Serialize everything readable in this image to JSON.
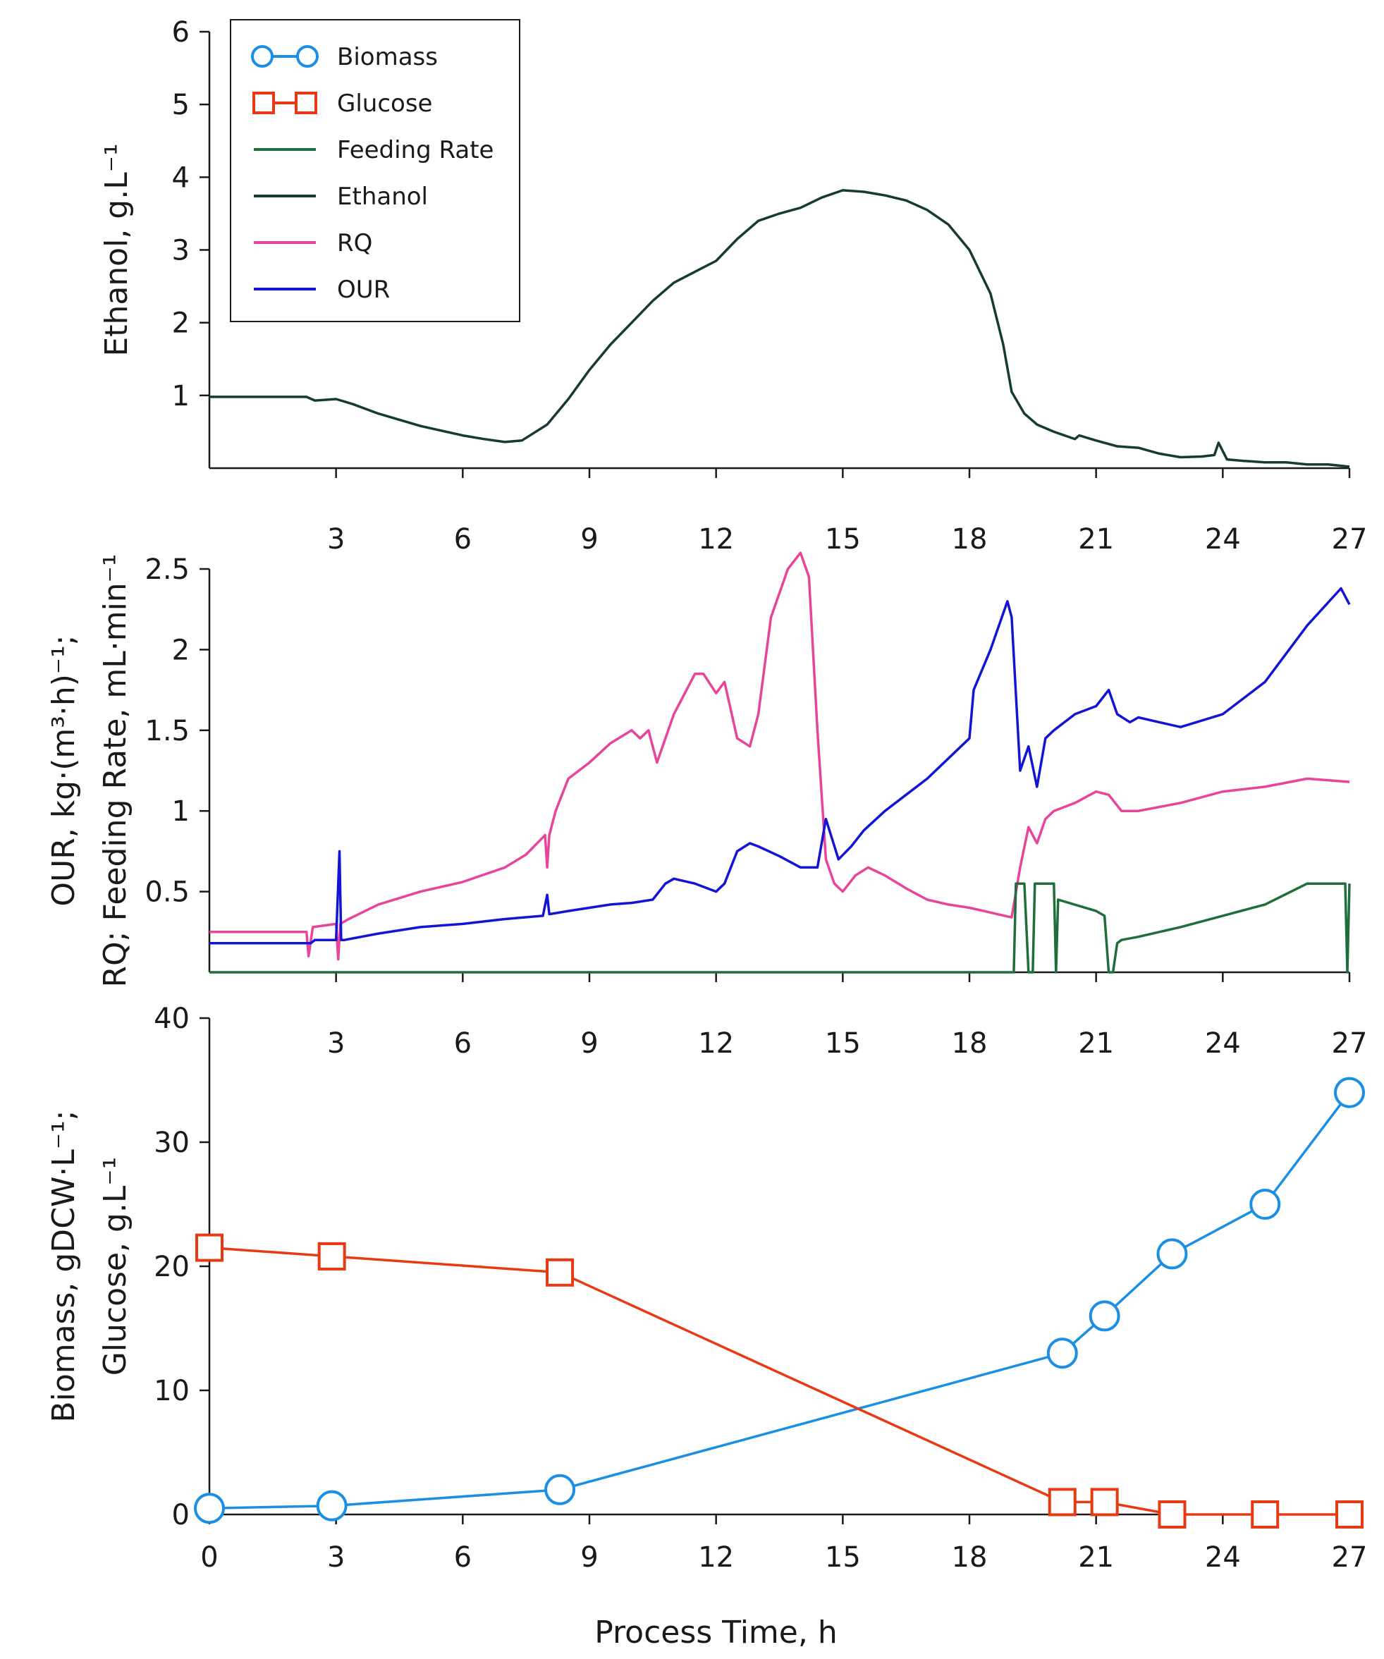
{
  "colors": {
    "biomass": "#1a8fe3",
    "glucose": "#e83a12",
    "feeding_rate": "#1f6e3a",
    "ethanol": "#163a35",
    "rq": "#e8449a",
    "our": "#1414d6",
    "axis": "#1a1a1a"
  },
  "legend": {
    "items": [
      {
        "label": "Biomass",
        "series": "biomass",
        "marker": "circle"
      },
      {
        "label": "Glucose",
        "series": "glucose",
        "marker": "square"
      },
      {
        "label": "Feeding Rate",
        "series": "feeding_rate",
        "marker": "none"
      },
      {
        "label": "Ethanol",
        "series": "ethanol",
        "marker": "none"
      },
      {
        "label": "RQ",
        "series": "rq",
        "marker": "none"
      },
      {
        "label": "OUR",
        "series": "our",
        "marker": "none"
      }
    ]
  },
  "chart_data": [
    {
      "id": "top",
      "type": "line",
      "ylabel": "Ethanol, g.L⁻¹",
      "xlabel": "",
      "xlim": [
        0,
        27
      ],
      "ylim": [
        0,
        6
      ],
      "xticks": [
        3,
        6,
        9,
        12,
        15,
        18,
        21,
        24,
        27
      ],
      "yticks": [
        1,
        2,
        3,
        4,
        5,
        6
      ],
      "legend_position": "top-left",
      "series": [
        {
          "name": "Ethanol",
          "key": "ethanol",
          "x": [
            0,
            2.3,
            2.5,
            3.0,
            3.4,
            4.0,
            5.0,
            6.0,
            6.5,
            7.0,
            7.4,
            8.0,
            8.5,
            9.0,
            9.5,
            10.0,
            10.5,
            11.0,
            11.5,
            12.0,
            12.5,
            13.0,
            13.5,
            14.0,
            14.5,
            15.0,
            15.5,
            16.0,
            16.5,
            17.0,
            17.5,
            18.0,
            18.5,
            18.8,
            19.0,
            19.3,
            19.6,
            20.0,
            20.5,
            20.6,
            21.0,
            21.5,
            22.0,
            22.5,
            23.0,
            23.5,
            23.8,
            23.9,
            24.1,
            24.5,
            25.0,
            25.5,
            26.0,
            26.5,
            27.0
          ],
          "y": [
            0.98,
            0.98,
            0.93,
            0.95,
            0.88,
            0.75,
            0.58,
            0.45,
            0.4,
            0.36,
            0.38,
            0.6,
            0.95,
            1.35,
            1.7,
            2.0,
            2.3,
            2.55,
            2.7,
            2.85,
            3.15,
            3.4,
            3.5,
            3.58,
            3.72,
            3.82,
            3.8,
            3.75,
            3.68,
            3.55,
            3.35,
            3.0,
            2.4,
            1.7,
            1.05,
            0.75,
            0.6,
            0.5,
            0.4,
            0.45,
            0.38,
            0.3,
            0.28,
            0.2,
            0.15,
            0.16,
            0.18,
            0.35,
            0.12,
            0.1,
            0.08,
            0.08,
            0.05,
            0.05,
            0.02
          ]
        }
      ]
    },
    {
      "id": "middle",
      "type": "line",
      "ylabel": "OUR, kg·(m³·h)⁻¹; RQ; Feeding Rate, mL·min⁻¹",
      "ylabel_line1": "OUR, kg·(m³·h)⁻¹;",
      "ylabel_line2": "RQ; Feeding Rate, mL·min⁻¹",
      "xlabel": "",
      "xlim": [
        0,
        27
      ],
      "ylim": [
        0,
        2.5
      ],
      "xticks": [
        3,
        6,
        9,
        12,
        15,
        18,
        21,
        24,
        27
      ],
      "yticks": [
        0.5,
        1,
        1.5,
        2,
        2.5
      ],
      "ytick_labels": [
        "0.5",
        "1",
        "1.5",
        "2",
        "2.5"
      ],
      "series": [
        {
          "name": "RQ",
          "key": "rq",
          "x": [
            0,
            2.3,
            2.35,
            2.45,
            3.0,
            3.05,
            3.1,
            3.3,
            4.0,
            5.0,
            6.0,
            7.0,
            7.5,
            7.95,
            8.0,
            8.05,
            8.2,
            8.5,
            9.0,
            9.5,
            10.0,
            10.2,
            10.4,
            10.6,
            10.8,
            11.0,
            11.5,
            11.7,
            12.0,
            12.2,
            12.5,
            12.8,
            13.0,
            13.3,
            13.7,
            14.0,
            14.2,
            14.4,
            14.6,
            14.8,
            15.0,
            15.3,
            15.6,
            16.0,
            16.5,
            17.0,
            17.5,
            18.0,
            18.5,
            19.0,
            19.2,
            19.4,
            19.6,
            19.8,
            20.0,
            20.5,
            21.0,
            21.3,
            21.6,
            22.0,
            23.0,
            24.0,
            25.0,
            26.0,
            27.0
          ],
          "y": [
            0.25,
            0.25,
            0.1,
            0.28,
            0.3,
            0.08,
            0.3,
            0.33,
            0.42,
            0.5,
            0.56,
            0.65,
            0.73,
            0.85,
            0.65,
            0.85,
            1.0,
            1.2,
            1.3,
            1.42,
            1.5,
            1.45,
            1.5,
            1.3,
            1.45,
            1.6,
            1.85,
            1.85,
            1.73,
            1.8,
            1.45,
            1.4,
            1.6,
            2.2,
            2.5,
            2.6,
            2.45,
            1.5,
            0.7,
            0.55,
            0.5,
            0.6,
            0.65,
            0.6,
            0.52,
            0.45,
            0.42,
            0.4,
            0.37,
            0.34,
            0.65,
            0.9,
            0.8,
            0.95,
            1.0,
            1.05,
            1.12,
            1.1,
            1.0,
            1.0,
            1.05,
            1.12,
            1.15,
            1.2,
            1.18
          ]
        },
        {
          "name": "OUR",
          "key": "our",
          "x": [
            0,
            2.4,
            2.5,
            3.0,
            3.08,
            3.12,
            3.2,
            4.0,
            5.0,
            6.0,
            7.0,
            7.9,
            8.0,
            8.05,
            8.5,
            9.0,
            9.5,
            10.0,
            10.5,
            10.8,
            11.0,
            11.5,
            12.0,
            12.2,
            12.5,
            12.8,
            13.0,
            13.5,
            14.0,
            14.4,
            14.6,
            14.9,
            15.2,
            15.5,
            16.0,
            17.0,
            18.0,
            18.1,
            18.5,
            18.9,
            19.0,
            19.2,
            19.4,
            19.6,
            19.8,
            20.0,
            20.5,
            21.0,
            21.3,
            21.5,
            21.8,
            22.0,
            22.5,
            23.0,
            24.0,
            25.0,
            26.0,
            26.8,
            27.0
          ],
          "y": [
            0.18,
            0.18,
            0.2,
            0.2,
            0.75,
            0.2,
            0.2,
            0.24,
            0.28,
            0.3,
            0.33,
            0.35,
            0.48,
            0.36,
            0.38,
            0.4,
            0.42,
            0.43,
            0.45,
            0.55,
            0.58,
            0.55,
            0.5,
            0.55,
            0.75,
            0.8,
            0.78,
            0.72,
            0.65,
            0.65,
            0.95,
            0.7,
            0.78,
            0.88,
            1.0,
            1.2,
            1.45,
            1.75,
            2.0,
            2.3,
            2.2,
            1.25,
            1.4,
            1.15,
            1.45,
            1.5,
            1.6,
            1.65,
            1.75,
            1.6,
            1.55,
            1.58,
            1.55,
            1.52,
            1.6,
            1.8,
            2.15,
            2.38,
            2.28
          ]
        },
        {
          "name": "Feeding Rate",
          "key": "feeding_rate",
          "x": [
            0,
            19.05,
            19.1,
            19.2,
            19.3,
            19.4,
            19.5,
            19.55,
            19.6,
            20.0,
            20.05,
            20.1,
            21.0,
            21.2,
            21.3,
            21.4,
            21.5,
            21.6,
            22.0,
            22.5,
            23.0,
            24.0,
            25.0,
            26.0,
            26.9,
            26.95,
            27.0
          ],
          "y": [
            0,
            0,
            0.55,
            0.55,
            0.55,
            0,
            0,
            0.55,
            0.55,
            0.55,
            0,
            0.45,
            0.38,
            0.35,
            0,
            0,
            0.18,
            0.2,
            0.22,
            0.25,
            0.28,
            0.35,
            0.42,
            0.55,
            0.55,
            0,
            0.55
          ]
        }
      ]
    },
    {
      "id": "bottom",
      "type": "line",
      "ylabel": "Biomass, gDCW·L⁻¹; Glucose, g.L⁻¹",
      "ylabel_line1": "Biomass, gDCW·L⁻¹;",
      "ylabel_line2": "Glucose, g.L⁻¹",
      "xlabel": "Process Time, h",
      "xlim": [
        0,
        27
      ],
      "ylim": [
        0,
        40
      ],
      "xticks": [
        0,
        3,
        6,
        9,
        12,
        15,
        18,
        21,
        24,
        27
      ],
      "yticks": [
        0,
        10,
        20,
        30,
        40
      ],
      "series": [
        {
          "name": "Biomass",
          "key": "biomass",
          "marker": "circle",
          "x": [
            0,
            2.9,
            8.3,
            20.2,
            21.2,
            22.8,
            25.0,
            27.0
          ],
          "y": [
            0.5,
            0.7,
            2.0,
            13.0,
            16.0,
            21.0,
            25.0,
            34.0
          ]
        },
        {
          "name": "Glucose",
          "key": "glucose",
          "marker": "square",
          "x": [
            0,
            2.9,
            8.3,
            20.2,
            21.2,
            22.8,
            25.0,
            27.0
          ],
          "y": [
            21.5,
            20.8,
            19.5,
            1.0,
            1.0,
            0.0,
            0.0,
            0.0
          ]
        }
      ]
    }
  ]
}
